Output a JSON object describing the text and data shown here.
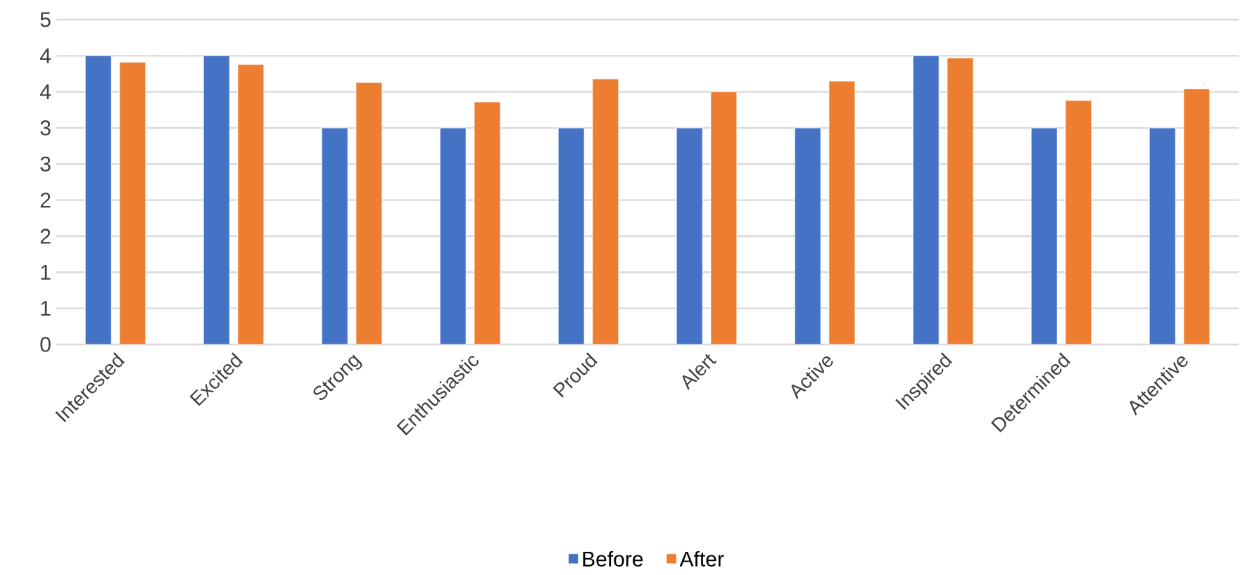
{
  "chart_data": {
    "type": "bar",
    "categories": [
      "Interested",
      "Excited",
      "Strong",
      "Enthusiastic",
      "Proud",
      "Alert",
      "Active",
      "Inspired",
      "Determined",
      "Attentive"
    ],
    "series": [
      {
        "name": "Before",
        "color": "#4472c4",
        "values": [
          4,
          4,
          3,
          3,
          3,
          3,
          3,
          4,
          3,
          3
        ]
      },
      {
        "name": "After",
        "color": "#ed7d31",
        "values": [
          3.91,
          3.88,
          3.63,
          3.36,
          3.68,
          3.5,
          3.65,
          3.97,
          3.38,
          3.54
        ]
      }
    ],
    "ylim": [
      0,
      4.5
    ],
    "yticks": [
      {
        "value": 0,
        "label": "0"
      },
      {
        "value": 0.5,
        "label": "1"
      },
      {
        "value": 1,
        "label": "1"
      },
      {
        "value": 1.5,
        "label": "2"
      },
      {
        "value": 2,
        "label": "2"
      },
      {
        "value": 2.5,
        "label": "3"
      },
      {
        "value": 3,
        "label": "3"
      },
      {
        "value": 3.5,
        "label": "4"
      },
      {
        "value": 4,
        "label": "4"
      },
      {
        "value": 4.5,
        "label": "5"
      }
    ],
    "grid": "y",
    "legend": "bottom"
  }
}
